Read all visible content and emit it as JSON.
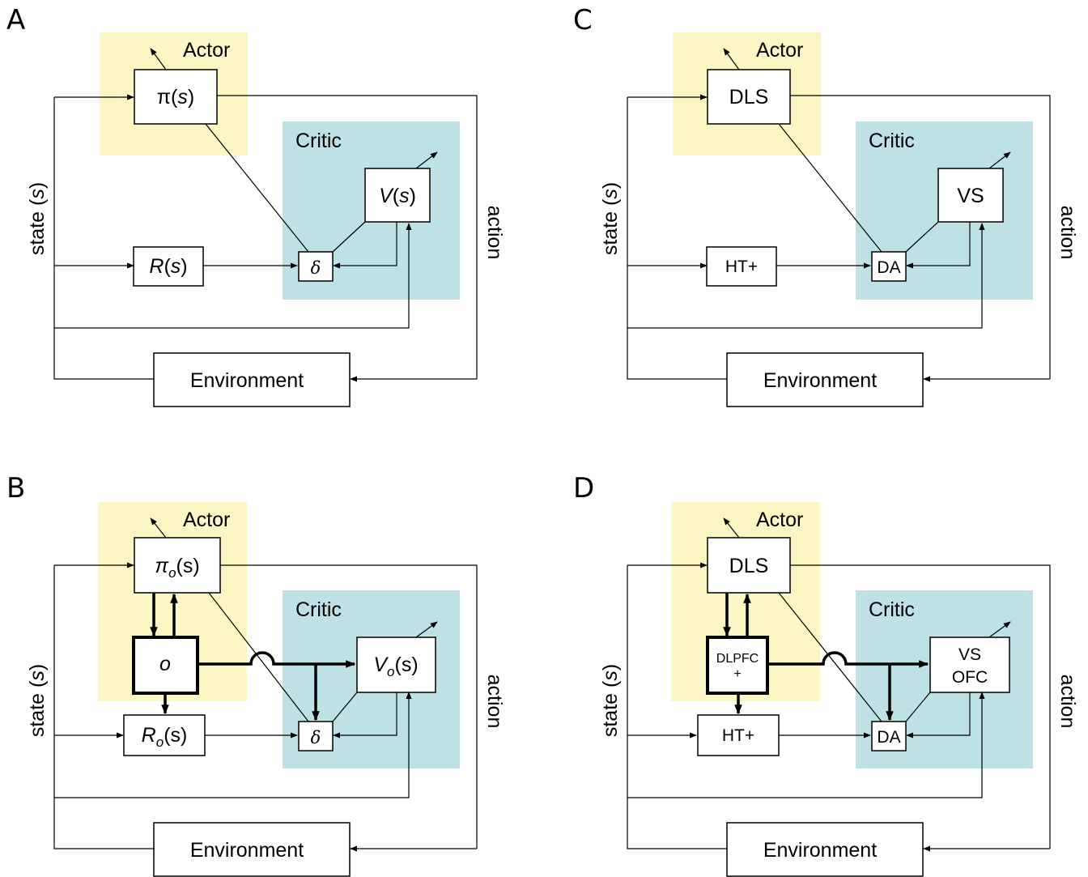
{
  "colors": {
    "actor_bg": "#fbf6c3",
    "critic_bg": "#bde1e4",
    "stroke": "#000000"
  },
  "panels": {
    "A": {
      "letter": "A",
      "actor_title": "Actor",
      "critic_title": "Critic",
      "policy": {
        "main": "π(",
        "italic": "s",
        "tail": ")"
      },
      "value": {
        "main": "V",
        "mid": "(",
        "italic": "s",
        "tail": ")"
      },
      "reward": {
        "main": "R",
        "mid": "(",
        "italic": "s",
        "tail": ")"
      },
      "td": "δ",
      "environment": "Environment",
      "state_label": {
        "text": "state (",
        "italic": "s",
        "tail": ")"
      },
      "action_label": "action"
    },
    "B": {
      "letter": "B",
      "actor_title": "Actor",
      "critic_title": "Critic",
      "policy": {
        "main": "π",
        "sub": "o",
        "tail": "(s)"
      },
      "option": "o",
      "value": {
        "main": "V",
        "sub": "o",
        "tail": "(s)"
      },
      "reward": {
        "main": "R",
        "sub": "o",
        "tail": "(s)"
      },
      "td": "δ",
      "environment": "Environment",
      "state_label": {
        "text": "state (",
        "italic": "s",
        "tail": ")"
      },
      "action_label": "action"
    },
    "C": {
      "letter": "C",
      "actor_title": "Actor",
      "critic_title": "Critic",
      "policy": "DLS",
      "value": "VS",
      "reward": "HT+",
      "td": "DA",
      "environment": "Environment",
      "state_label": {
        "text": "state (",
        "italic": "s",
        "tail": ")"
      },
      "action_label": "action"
    },
    "D": {
      "letter": "D",
      "actor_title": "Actor",
      "critic_title": "Critic",
      "policy": "DLS",
      "option_line1": "DLPFC",
      "option_line2": "+",
      "value_line1": "VS",
      "value_line2": "OFC",
      "reward": "HT+",
      "td": "DA",
      "environment": "Environment",
      "state_label": {
        "text": "state (",
        "italic": "s",
        "tail": ")"
      },
      "action_label": "action"
    }
  }
}
